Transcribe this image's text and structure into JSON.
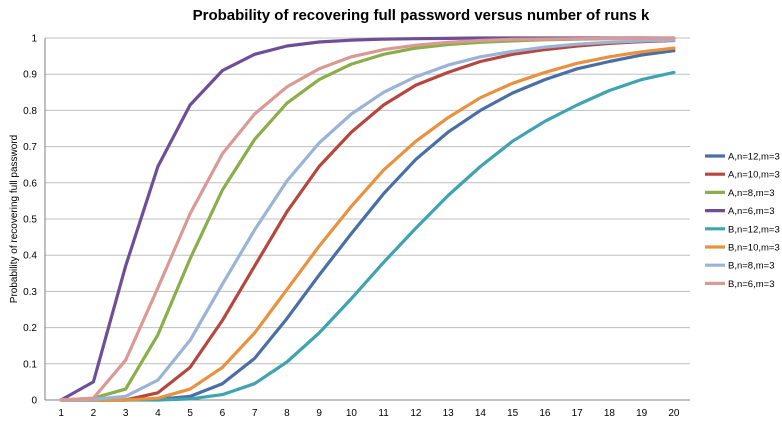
{
  "chart_data": {
    "type": "line",
    "title": "Probability of recovering full password versus number of runs k",
    "xlabel": "",
    "ylabel": "Probability of recovering full password",
    "ylim": [
      0,
      1
    ],
    "yticks": [
      "0",
      "0.1",
      "0.2",
      "0.3",
      "0.4",
      "0.5",
      "0.6",
      "0.7",
      "0.8",
      "0.9",
      "1"
    ],
    "x": [
      1,
      2,
      3,
      4,
      5,
      6,
      7,
      8,
      9,
      10,
      11,
      12,
      13,
      14,
      15,
      16,
      17,
      18,
      19,
      20
    ],
    "grid": true,
    "legend_position": "right",
    "series": [
      {
        "name": "A,n=12,m=3",
        "color": "#4a6fa5",
        "values": [
          0,
          0,
          0,
          0.002,
          0.01,
          0.045,
          0.115,
          0.225,
          0.345,
          0.46,
          0.57,
          0.665,
          0.74,
          0.8,
          0.848,
          0.885,
          0.915,
          0.935,
          0.953,
          0.965
        ]
      },
      {
        "name": "A,n=10,m=3",
        "color": "#b5473f",
        "values": [
          0,
          0,
          0,
          0.02,
          0.09,
          0.22,
          0.37,
          0.52,
          0.645,
          0.74,
          0.815,
          0.87,
          0.905,
          0.935,
          0.955,
          0.968,
          0.978,
          0.985,
          0.99,
          0.993
        ]
      },
      {
        "name": "A,n=8,m=3",
        "color": "#8bad4a",
        "values": [
          0,
          0.005,
          0.03,
          0.18,
          0.39,
          0.58,
          0.72,
          0.82,
          0.885,
          0.928,
          0.955,
          0.972,
          0.982,
          0.988,
          0.992,
          0.995,
          0.997,
          0.998,
          0.999,
          0.999
        ]
      },
      {
        "name": "A,n=6,m=3",
        "color": "#6e4f96",
        "values": [
          0,
          0.05,
          0.37,
          0.645,
          0.815,
          0.91,
          0.955,
          0.978,
          0.989,
          0.994,
          0.997,
          0.998,
          0.999,
          1,
          1,
          1,
          1,
          1,
          1,
          1
        ]
      },
      {
        "name": "B,n=12,m=3",
        "color": "#3fa3b0",
        "values": [
          0,
          0,
          0,
          0,
          0.003,
          0.015,
          0.045,
          0.105,
          0.185,
          0.28,
          0.38,
          0.475,
          0.565,
          0.645,
          0.715,
          0.77,
          0.815,
          0.855,
          0.885,
          0.905
        ]
      },
      {
        "name": "B,n=10,m=3",
        "color": "#e8913f",
        "values": [
          0,
          0,
          0,
          0.005,
          0.03,
          0.09,
          0.185,
          0.305,
          0.425,
          0.535,
          0.635,
          0.715,
          0.78,
          0.835,
          0.875,
          0.905,
          0.93,
          0.948,
          0.962,
          0.972
        ]
      },
      {
        "name": "B,n=8,m=3",
        "color": "#9ab3d6",
        "values": [
          0,
          0.002,
          0.01,
          0.055,
          0.165,
          0.32,
          0.47,
          0.605,
          0.71,
          0.79,
          0.85,
          0.893,
          0.925,
          0.948,
          0.963,
          0.975,
          0.983,
          0.988,
          0.992,
          0.994
        ]
      },
      {
        "name": "B,n=6,m=3",
        "color": "#d99a96",
        "values": [
          0,
          0.005,
          0.11,
          0.31,
          0.515,
          0.68,
          0.79,
          0.865,
          0.915,
          0.948,
          0.968,
          0.98,
          0.988,
          0.993,
          0.996,
          0.997,
          0.998,
          0.999,
          0.999,
          1
        ]
      }
    ]
  }
}
